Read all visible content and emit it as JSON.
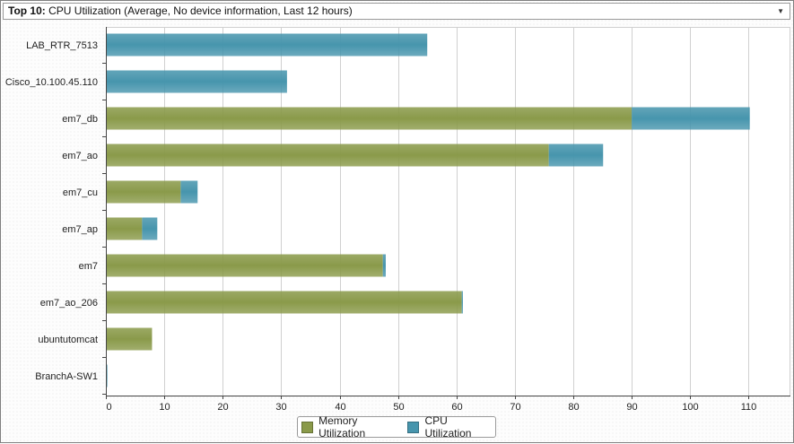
{
  "header": {
    "title_prefix": "Top 10:",
    "title_text": " CPU Utilization (Average, No device information, Last 12 hours)",
    "dropdown_icon": "chevron-down-icon"
  },
  "colors": {
    "memory": "#8a9a4a",
    "cpu": "#4795ad",
    "grid": "#d0d0d0",
    "axis": "#444444"
  },
  "chart_data": {
    "type": "bar",
    "orientation": "horizontal",
    "stacked": true,
    "categories": [
      "LAB_RTR_7513",
      "Cisco_10.100.45.110",
      "em7_db",
      "em7_ao",
      "em7_cu",
      "em7_ap",
      "em7",
      "em7_ao_206",
      "ubuntutomcat",
      "BranchA-SW1"
    ],
    "series": [
      {
        "name": "Memory Utilization",
        "color": "#8a9a4a",
        "values": [
          0,
          0,
          90,
          75.8,
          12.8,
          6.2,
          47.4,
          60.9,
          7.9,
          0.1
        ]
      },
      {
        "name": "CPU Utilization",
        "color": "#4795ad",
        "values": [
          55,
          31,
          20.2,
          9.3,
          2.9,
          2.6,
          0.5,
          0.2,
          0,
          0.1
        ]
      }
    ],
    "xticks": [
      0,
      10,
      20,
      30,
      40,
      50,
      60,
      70,
      80,
      90,
      100,
      110
    ],
    "xlim": [
      0,
      117
    ],
    "grid": true,
    "legend": "bottom-center"
  }
}
